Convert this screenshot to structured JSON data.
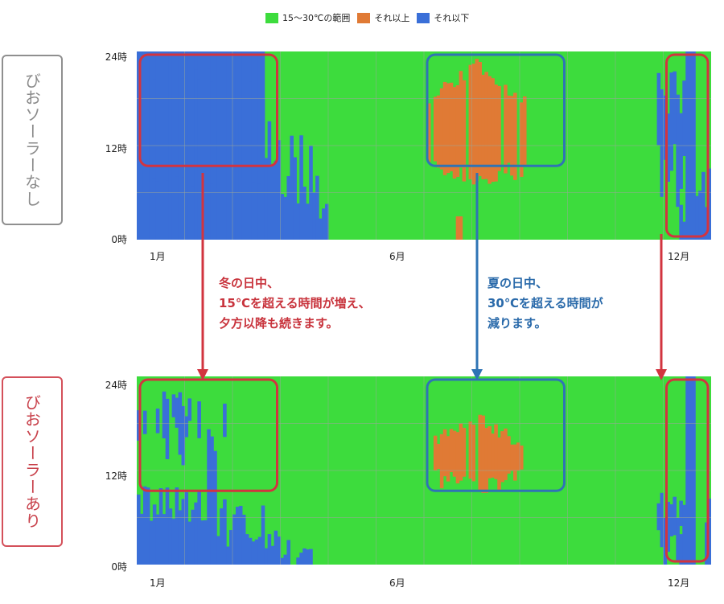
{
  "legend": [
    {
      "label": "15～30℃の範囲",
      "color": "#3ddc3d"
    },
    {
      "label": "それ以上",
      "color": "#e07a35"
    },
    {
      "label": "それ以下",
      "color": "#3a6fd8"
    }
  ],
  "panels": [
    {
      "label": "びおソーラーなし",
      "style": "gray"
    },
    {
      "label": "びおソーラーあり",
      "style": "red"
    }
  ],
  "annotations": {
    "winter": [
      "冬の日中、",
      "15℃を超える時間が増え、",
      "夕方以降も続きます。"
    ],
    "summer": [
      "夏の日中、",
      "30℃を超える時間が",
      "減ります。"
    ]
  },
  "colors": {
    "green": "#3ddc3d",
    "orange": "#e07a35",
    "blue": "#3a6fd8",
    "red_frame": "#d2343f",
    "blue_frame": "#2f74b5",
    "arrow_red": "#d2343f",
    "arrow_blue": "#2f74b5"
  },
  "chart_data": [
    {
      "type": "heatmap",
      "title": "",
      "y_ticks": [
        "24時",
        "12時",
        "0時"
      ],
      "x_ticks": [
        "1月",
        "6月",
        "12月"
      ],
      "ylim": [
        0,
        24
      ],
      "xlim": [
        1,
        12
      ],
      "categories": [
        "15～30℃の範囲",
        "それ以上",
        "それ以下"
      ],
      "highlight_regions": [
        {
          "months": [
            1,
            3
          ],
          "hours": [
            9,
            24
          ],
          "color": "red"
        },
        {
          "months": [
            7,
            9
          ],
          "hours": [
            9,
            24
          ],
          "color": "blue"
        },
        {
          "months": [
            12,
            12
          ],
          "hours": [
            0,
            24
          ],
          "color": "red"
        }
      ]
    },
    {
      "type": "heatmap",
      "title": "",
      "y_ticks": [
        "24時",
        "12時",
        "0時"
      ],
      "x_ticks": [
        "1月",
        "6月",
        "12月"
      ],
      "ylim": [
        0,
        24
      ],
      "xlim": [
        1,
        12
      ],
      "categories": [
        "15～30℃の範囲",
        "それ以上",
        "それ以下"
      ],
      "highlight_regions": [
        {
          "months": [
            1,
            3
          ],
          "hours": [
            9,
            24
          ],
          "color": "red"
        },
        {
          "months": [
            7,
            9
          ],
          "hours": [
            9,
            24
          ],
          "color": "blue"
        },
        {
          "months": [
            12,
            12
          ],
          "hours": [
            0,
            24
          ],
          "color": "red"
        }
      ]
    }
  ]
}
